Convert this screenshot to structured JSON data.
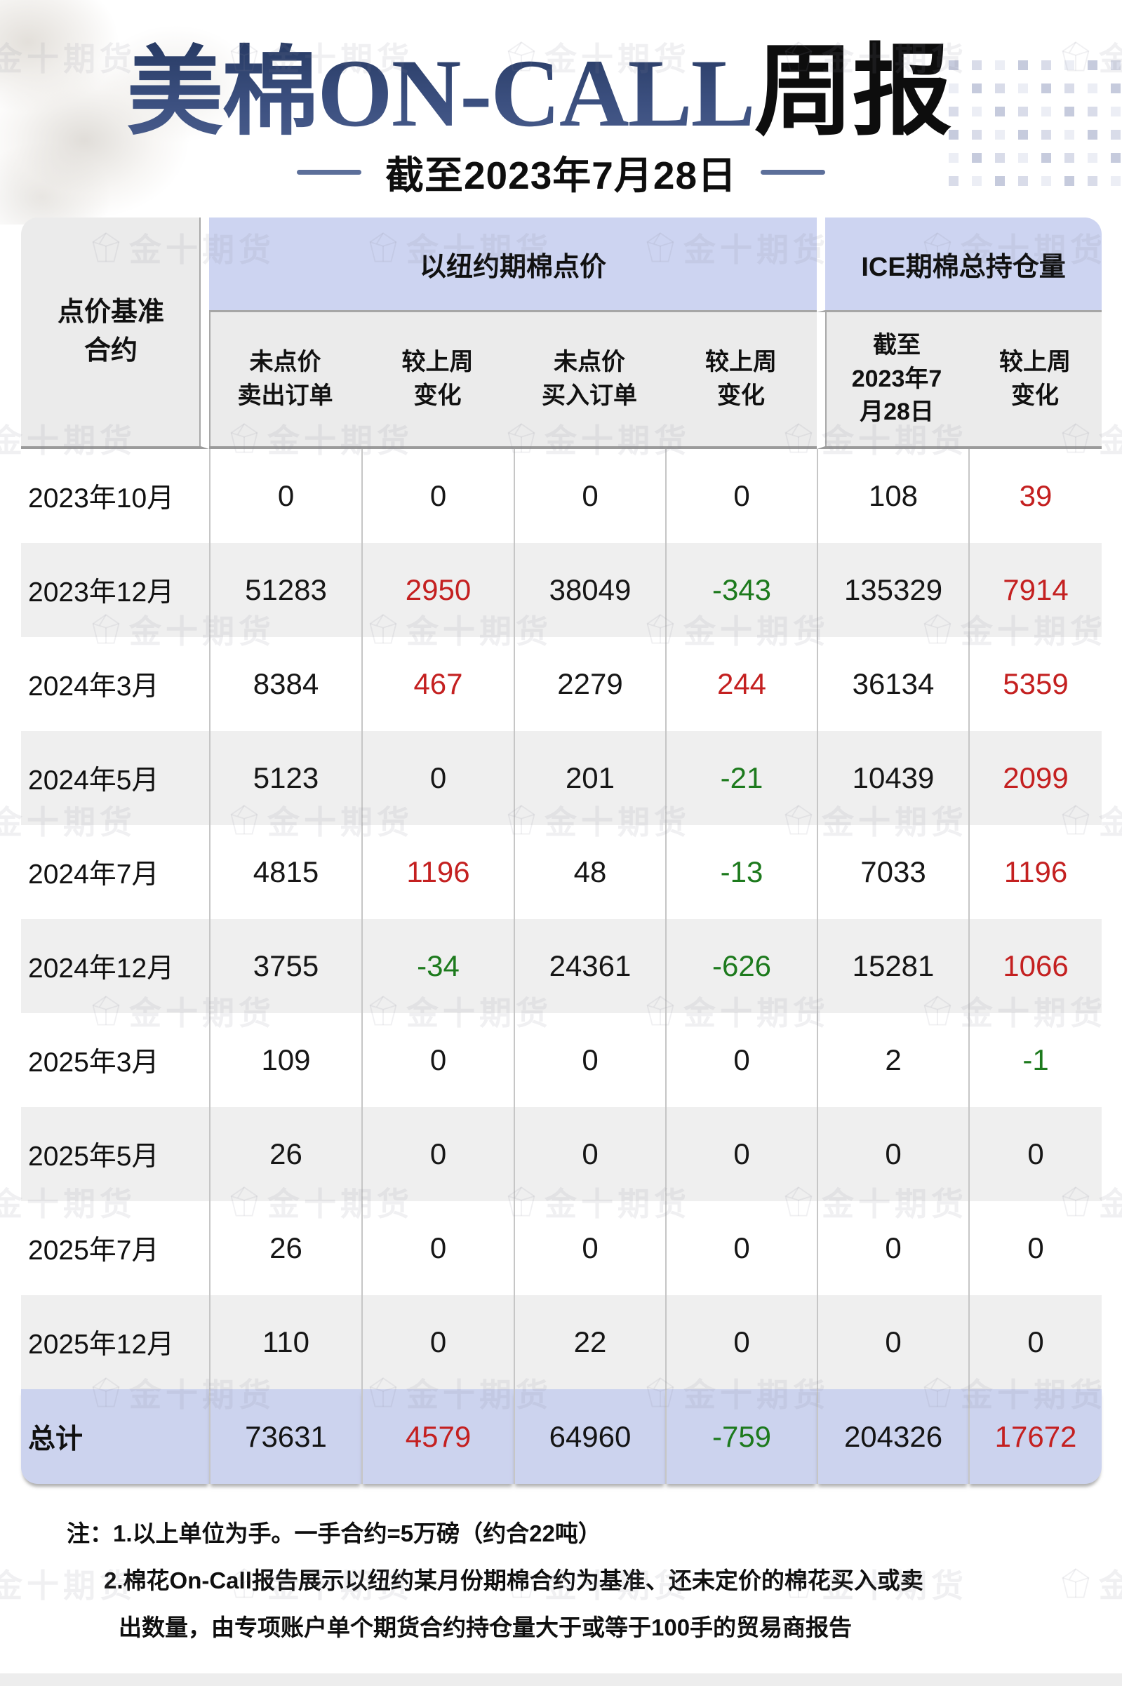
{
  "title": {
    "main": "美棉ON-CALL",
    "suffix": "周报",
    "subtitle": "截至2023年7月28日"
  },
  "table": {
    "corner_header": "点价基准\n合约",
    "groups": [
      {
        "label": "以纽约期棉点价"
      },
      {
        "label": "ICE期棉总持仓量"
      }
    ],
    "subheaders": [
      "未点价\n卖出订单",
      "较上周\n变化",
      "未点价\n买入订单",
      "较上周\n变化",
      "截至\n2023年7\n月28日",
      "较上周\n变化"
    ],
    "rows": [
      {
        "label": "2023年10月",
        "values": [
          "0",
          "0",
          "0",
          "0",
          "108",
          "39"
        ],
        "colors": [
          "k",
          "k",
          "k",
          "k",
          "k",
          "r"
        ]
      },
      {
        "label": "2023年12月",
        "values": [
          "51283",
          "2950",
          "38049",
          "-343",
          "135329",
          "7914"
        ],
        "colors": [
          "k",
          "r",
          "k",
          "g",
          "k",
          "r"
        ]
      },
      {
        "label": "2024年3月",
        "values": [
          "8384",
          "467",
          "2279",
          "244",
          "36134",
          "5359"
        ],
        "colors": [
          "k",
          "r",
          "k",
          "r",
          "k",
          "r"
        ]
      },
      {
        "label": "2024年5月",
        "values": [
          "5123",
          "0",
          "201",
          "-21",
          "10439",
          "2099"
        ],
        "colors": [
          "k",
          "k",
          "k",
          "g",
          "k",
          "r"
        ]
      },
      {
        "label": "2024年7月",
        "values": [
          "4815",
          "1196",
          "48",
          "-13",
          "7033",
          "1196"
        ],
        "colors": [
          "k",
          "r",
          "k",
          "g",
          "k",
          "r"
        ]
      },
      {
        "label": "2024年12月",
        "values": [
          "3755",
          "-34",
          "24361",
          "-626",
          "15281",
          "1066"
        ],
        "colors": [
          "k",
          "g",
          "k",
          "g",
          "k",
          "r"
        ]
      },
      {
        "label": "2025年3月",
        "values": [
          "109",
          "0",
          "0",
          "0",
          "2",
          "-1"
        ],
        "colors": [
          "k",
          "k",
          "k",
          "k",
          "k",
          "g"
        ]
      },
      {
        "label": "2025年5月",
        "values": [
          "26",
          "0",
          "0",
          "0",
          "0",
          "0"
        ],
        "colors": [
          "k",
          "k",
          "k",
          "k",
          "k",
          "k"
        ]
      },
      {
        "label": "2025年7月",
        "values": [
          "26",
          "0",
          "0",
          "0",
          "0",
          "0"
        ],
        "colors": [
          "k",
          "k",
          "k",
          "k",
          "k",
          "k"
        ]
      },
      {
        "label": "2025年12月",
        "values": [
          "110",
          "0",
          "22",
          "0",
          "0",
          "0"
        ],
        "colors": [
          "k",
          "k",
          "k",
          "k",
          "k",
          "k"
        ]
      }
    ],
    "total": {
      "label": "总计",
      "values": [
        "73631",
        "4579",
        "64960",
        "-759",
        "204326",
        "17672"
      ],
      "colors": [
        "k",
        "r",
        "k",
        "g",
        "k",
        "r"
      ]
    }
  },
  "notes": [
    "注：1.以上单位为手。一手合约=5万磅（约合22吨）",
    "2.棉花On-Call报告展示以纽约某月份期棉合约为基准、还未定价的棉花买入或卖",
    "出数量，由专项账户单个期货合约持仓量大于或等于100手的贸易商报告"
  ],
  "watermark": {
    "text": "金十期货",
    "logo": "gem-pentagon-icon"
  },
  "colors": {
    "accent_red": "#c42020",
    "accent_green": "#1d7a1d",
    "header_blue": "#cdd4f1",
    "total_blue": "#ccd3ee",
    "header_gray": "#ebebeb",
    "row_alt_gray": "#efefef",
    "title_navy": "#33466e",
    "dash_blue": "#5c6f9a"
  }
}
